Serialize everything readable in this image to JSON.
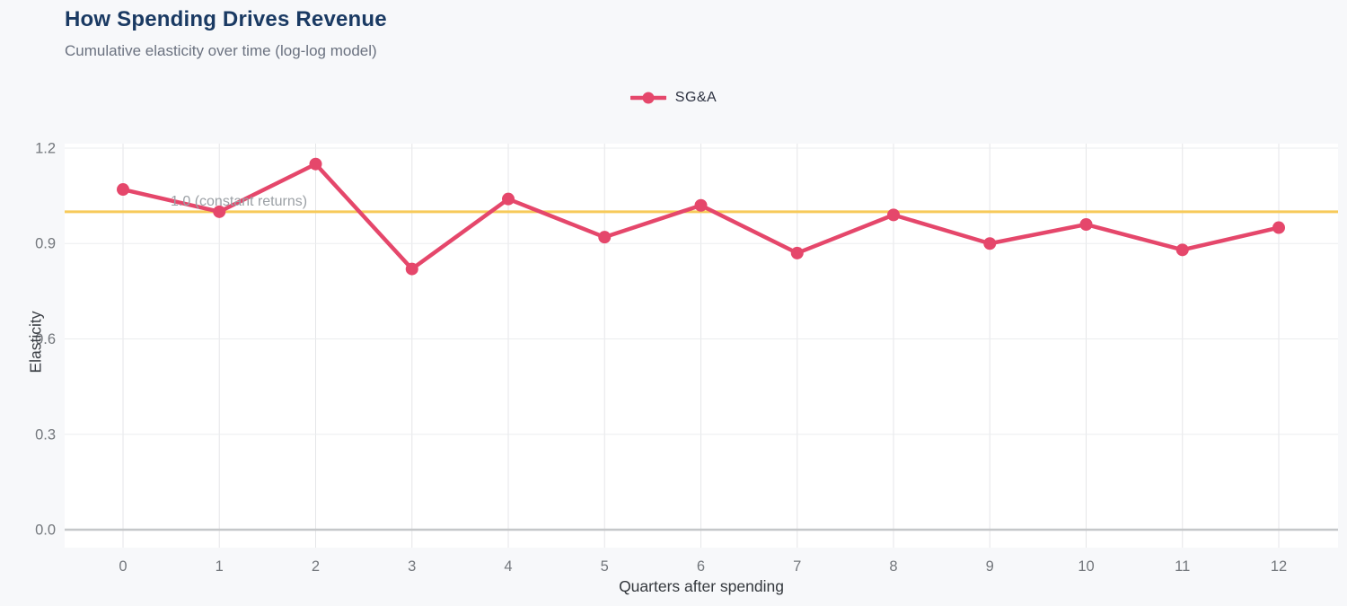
{
  "header": {
    "title": "How Spending Drives Revenue",
    "subtitle": "Cumulative elasticity over time (log-log model)"
  },
  "chart_data": {
    "type": "line",
    "title": "How Spending Drives Revenue",
    "subtitle": "Cumulative elasticity over time (log-log model)",
    "xlabel": "Quarters after spending",
    "ylabel": "Elasticity",
    "x": [
      0,
      1,
      2,
      3,
      4,
      5,
      6,
      7,
      8,
      9,
      10,
      11,
      12
    ],
    "series": [
      {
        "name": "SG&A",
        "values": [
          1.07,
          1.0,
          1.15,
          0.82,
          1.04,
          0.92,
          1.02,
          0.87,
          0.99,
          0.9,
          0.96,
          0.88,
          0.95
        ]
      }
    ],
    "yticks": [
      0.0,
      0.3,
      0.6,
      0.9,
      1.2
    ],
    "ylim": [
      0,
      1.2
    ],
    "xlim": [
      0,
      12
    ],
    "grid": true,
    "legend_position": "top-center",
    "reference_line": {
      "value": 1.0,
      "label": "1.0 (constant returns)"
    },
    "colors": {
      "series": "#e5476b",
      "reference": "#f7ca5a",
      "title": "#1a3a63",
      "subtitle": "#6b7280",
      "plot_background": "#ffffff",
      "page_background": "#f7f8fa"
    }
  }
}
